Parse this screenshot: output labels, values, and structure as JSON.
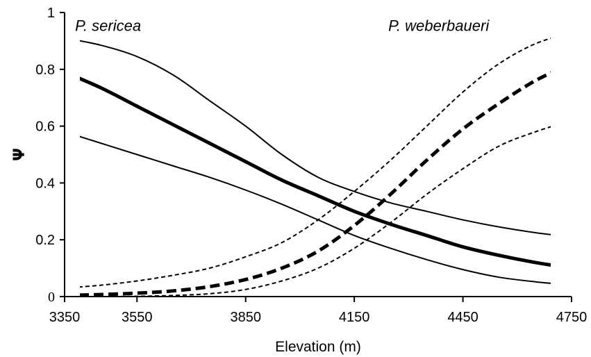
{
  "chart_data": {
    "type": "line",
    "xlabel": "Elevation (m)",
    "ylabel": "Ψ",
    "xlim": [
      3350,
      4750
    ],
    "ylim": [
      0,
      1
    ],
    "x_ticks": [
      3350,
      3550,
      3850,
      4150,
      4450,
      4750
    ],
    "y_ticks": [
      {
        "value": 0,
        "label": "0"
      },
      {
        "value": 0.2,
        "label": "0.2"
      },
      {
        "value": 0.4,
        "label": "0.4"
      },
      {
        "value": 0.6,
        "label": "0.6"
      },
      {
        "value": 0.8,
        "label": "0.8"
      },
      {
        "value": 1,
        "label": "1"
      }
    ],
    "grid": false,
    "annotations": [
      {
        "text": "P. sericea",
        "x": 3470,
        "y": 0.955
      },
      {
        "text": "P. weberbaueri",
        "x": 4383,
        "y": 0.955
      }
    ],
    "series": [
      {
        "group": "sericea",
        "role": "upper",
        "style": "solid",
        "width": 2,
        "x": [
          3350,
          3450,
          3550,
          3650,
          3750,
          3850,
          3950,
          4050,
          4150,
          4250,
          4350,
          4450,
          4550,
          4650,
          4750
        ],
        "y": [
          0.91,
          0.885,
          0.845,
          0.78,
          0.69,
          0.6,
          0.5,
          0.42,
          0.37,
          0.33,
          0.3,
          0.27,
          0.245,
          0.225,
          0.21
        ]
      },
      {
        "group": "sericea",
        "role": "estimate",
        "style": "solid",
        "width": 5,
        "x": [
          3350,
          3450,
          3550,
          3650,
          3750,
          3850,
          3950,
          4050,
          4150,
          4250,
          4350,
          4450,
          4550,
          4650,
          4750
        ],
        "y": [
          0.79,
          0.735,
          0.67,
          0.605,
          0.54,
          0.475,
          0.41,
          0.355,
          0.3,
          0.255,
          0.215,
          0.175,
          0.145,
          0.12,
          0.1
        ]
      },
      {
        "group": "sericea",
        "role": "lower",
        "style": "solid",
        "width": 2,
        "x": [
          3350,
          3450,
          3550,
          3650,
          3750,
          3850,
          3950,
          4050,
          4150,
          4250,
          4350,
          4450,
          4550,
          4650,
          4750
        ],
        "y": [
          0.58,
          0.54,
          0.5,
          0.46,
          0.42,
          0.375,
          0.325,
          0.27,
          0.215,
          0.17,
          0.13,
          0.095,
          0.068,
          0.052,
          0.04
        ]
      },
      {
        "group": "weberbaueri",
        "role": "upper",
        "style": "dashed-fine",
        "width": 2,
        "x": [
          3350,
          3450,
          3550,
          3650,
          3750,
          3850,
          3950,
          4050,
          4150,
          4250,
          4350,
          4450,
          4550,
          4650,
          4750
        ],
        "y": [
          0.03,
          0.04,
          0.055,
          0.075,
          0.1,
          0.14,
          0.19,
          0.27,
          0.37,
          0.48,
          0.6,
          0.72,
          0.82,
          0.89,
          0.93
        ]
      },
      {
        "group": "weberbaueri",
        "role": "estimate",
        "style": "dashed-bold",
        "width": 5,
        "x": [
          3350,
          3450,
          3550,
          3650,
          3750,
          3850,
          3950,
          4050,
          4150,
          4250,
          4350,
          4450,
          4550,
          4650,
          4750
        ],
        "y": [
          0.004,
          0.007,
          0.012,
          0.02,
          0.035,
          0.06,
          0.1,
          0.16,
          0.25,
          0.36,
          0.48,
          0.59,
          0.68,
          0.76,
          0.82
        ]
      },
      {
        "group": "weberbaueri",
        "role": "lower",
        "style": "dashed-fine",
        "width": 2,
        "x": [
          3350,
          3450,
          3550,
          3650,
          3750,
          3850,
          3950,
          4050,
          4150,
          4250,
          4350,
          4450,
          4550,
          4650,
          4750
        ],
        "y": [
          0.0,
          0.0,
          0.001,
          0.004,
          0.01,
          0.025,
          0.055,
          0.1,
          0.17,
          0.26,
          0.36,
          0.45,
          0.53,
          0.58,
          0.62
        ]
      }
    ]
  }
}
